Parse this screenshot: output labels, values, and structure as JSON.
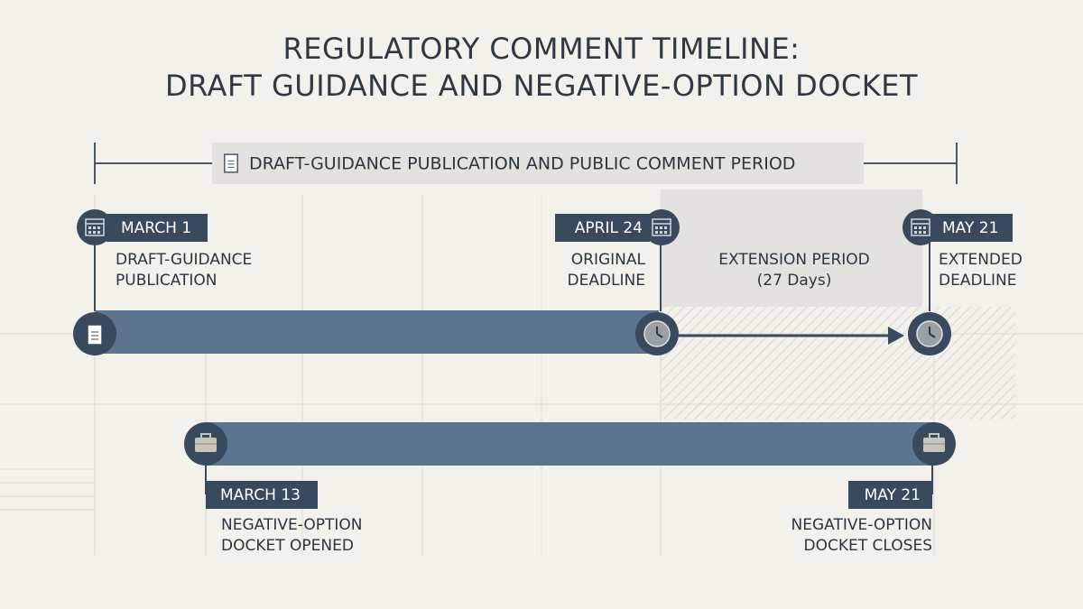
{
  "header": {
    "title": [
      "REGULATORY COMMENT TIMELINE:",
      "DRAFT GUIDANCE AND NEGATIVE-OPTION DOCKET"
    ]
  },
  "span": {
    "label": "DRAFT-GUIDANCE PUBLICATION AND PUBLIC COMMENT PERIOD"
  },
  "events": [
    {
      "date": "MARCH 1",
      "label": [
        "DRAFT-GUIDANCE",
        "PUBLICATION"
      ]
    },
    {
      "date": "APRIL 24",
      "label": [
        "ORIGINAL",
        "DEADLINE"
      ]
    },
    {
      "date": "MAY 21",
      "label": [
        "EXTENDED",
        "DEADLINE"
      ]
    }
  ],
  "extension": {
    "label": "EXTENSION PERIOD",
    "duration": "(27 Days)"
  },
  "docket": [
    {
      "date": "MARCH 13",
      "label": [
        "NEGATIVE-OPTION",
        "DOCKET OPENED"
      ]
    },
    {
      "date": "MAY 21",
      "label": [
        "NEGATIVE-OPTION",
        "DOCKET CLOSES"
      ]
    }
  ]
}
